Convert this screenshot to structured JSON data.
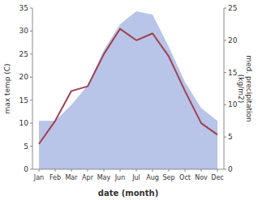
{
  "chart_data": {
    "type": "line",
    "xlabel": "date (month)",
    "ylabel": "max temp (C)",
    "y2label": "med. precipitation\n(kg/m2)",
    "categories": [
      "Jan",
      "Feb",
      "Mar",
      "Apr",
      "May",
      "Jun",
      "Jul",
      "Aug",
      "Sep",
      "Oct",
      "Nov",
      "Dec"
    ],
    "series": [
      {
        "type": "area",
        "axis": "y2",
        "color": "#b8c4e8",
        "values": [
          7.5,
          7.5,
          10.0,
          13.0,
          18.5,
          22.5,
          24.5,
          24.0,
          19.0,
          13.5,
          9.5,
          7.5
        ]
      },
      {
        "type": "line",
        "color": "#a04050",
        "values": [
          5.5,
          10.5,
          17.0,
          18.0,
          25.0,
          30.5,
          28.0,
          29.5,
          24.5,
          17.0,
          10.0,
          7.5
        ]
      }
    ],
    "ylim": [
      0,
      35
    ],
    "yticks": [
      0,
      5,
      10,
      15,
      20,
      25,
      30,
      35
    ],
    "y2lim": [
      0,
      25
    ],
    "y2ticks": [
      0,
      5,
      10,
      15,
      20,
      25
    ],
    "grid": false
  }
}
